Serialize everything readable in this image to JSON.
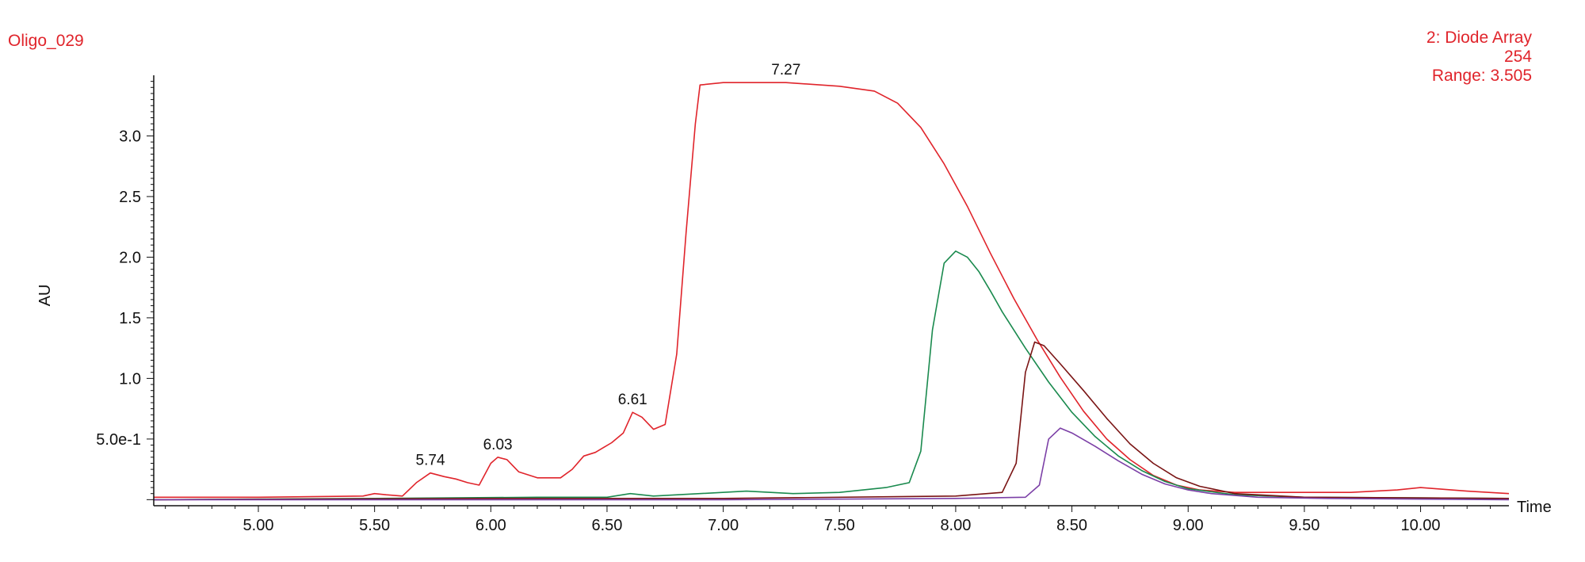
{
  "header": {
    "sample_name": "Oligo_029",
    "detector": "2: Diode Array",
    "wavelength": "254",
    "range_label": "Range: 3.505"
  },
  "chart_data": {
    "type": "line",
    "title": "",
    "xlabel": "Time",
    "ylabel": "AU",
    "xlim": [
      4.55,
      10.38
    ],
    "ylim": [
      -0.05,
      3.5
    ],
    "x_ticks": [
      5.0,
      5.5,
      6.0,
      6.5,
      7.0,
      7.5,
      8.0,
      8.5,
      9.0,
      9.5,
      10.0
    ],
    "x_tick_labels": [
      "5.00",
      "5.50",
      "6.00",
      "6.50",
      "7.00",
      "7.50",
      "8.00",
      "8.50",
      "9.00",
      "9.50",
      "10.00"
    ],
    "y_ticks": [
      0.5,
      1.0,
      1.5,
      2.0,
      2.5,
      3.0
    ],
    "y_tick_labels": [
      "5.0e-1",
      "1.0",
      "1.5",
      "2.0",
      "2.5",
      "3.0"
    ],
    "grid": false,
    "peak_labels": [
      {
        "x": 5.74,
        "y": 0.22,
        "label": "5.74"
      },
      {
        "x": 6.03,
        "y": 0.35,
        "label": "6.03"
      },
      {
        "x": 6.61,
        "y": 0.72,
        "label": "6.61"
      },
      {
        "x": 7.27,
        "y": 3.44,
        "label": "7.27"
      }
    ],
    "series": [
      {
        "color": "#e0242b",
        "x": [
          4.55,
          5.0,
          5.45,
          5.5,
          5.55,
          5.62,
          5.68,
          5.74,
          5.8,
          5.85,
          5.9,
          5.95,
          6.0,
          6.03,
          6.07,
          6.12,
          6.2,
          6.3,
          6.35,
          6.4,
          6.45,
          6.52,
          6.57,
          6.61,
          6.65,
          6.7,
          6.75,
          6.8,
          6.84,
          6.88,
          6.9,
          7.0,
          7.27,
          7.5,
          7.65,
          7.75,
          7.85,
          7.95,
          8.05,
          8.15,
          8.25,
          8.35,
          8.45,
          8.55,
          8.65,
          8.75,
          8.85,
          8.95,
          9.05,
          9.2,
          9.4,
          9.7,
          9.9,
          10.0,
          10.2,
          10.38
        ],
        "y": [
          0.02,
          0.02,
          0.03,
          0.05,
          0.04,
          0.03,
          0.14,
          0.22,
          0.19,
          0.17,
          0.14,
          0.12,
          0.3,
          0.35,
          0.33,
          0.23,
          0.18,
          0.18,
          0.25,
          0.36,
          0.39,
          0.47,
          0.55,
          0.72,
          0.68,
          0.58,
          0.62,
          1.2,
          2.2,
          3.1,
          3.42,
          3.44,
          3.44,
          3.41,
          3.37,
          3.27,
          3.07,
          2.77,
          2.42,
          2.03,
          1.66,
          1.32,
          1.01,
          0.73,
          0.5,
          0.33,
          0.2,
          0.12,
          0.08,
          0.06,
          0.06,
          0.06,
          0.08,
          0.1,
          0.07,
          0.05
        ]
      },
      {
        "color": "#1a8a4e",
        "x": [
          4.55,
          5.5,
          6.2,
          6.5,
          6.6,
          6.7,
          7.1,
          7.3,
          7.5,
          7.7,
          7.8,
          7.85,
          7.9,
          7.95,
          8.0,
          8.05,
          8.1,
          8.15,
          8.2,
          8.3,
          8.4,
          8.5,
          8.6,
          8.7,
          8.8,
          8.9,
          9.0,
          9.2,
          9.5,
          10.38
        ],
        "y": [
          0.0,
          0.01,
          0.02,
          0.02,
          0.05,
          0.03,
          0.07,
          0.05,
          0.06,
          0.1,
          0.14,
          0.4,
          1.4,
          1.95,
          2.05,
          2.0,
          1.88,
          1.72,
          1.55,
          1.25,
          0.97,
          0.72,
          0.52,
          0.36,
          0.24,
          0.15,
          0.09,
          0.04,
          0.02,
          0.01
        ]
      },
      {
        "color": "#7a1414",
        "x": [
          4.55,
          6.0,
          7.0,
          8.0,
          8.2,
          8.26,
          8.3,
          8.34,
          8.38,
          8.45,
          8.55,
          8.65,
          8.75,
          8.85,
          8.95,
          9.05,
          9.2,
          9.5,
          10.38
        ],
        "y": [
          0.0,
          0.01,
          0.01,
          0.03,
          0.06,
          0.3,
          1.05,
          1.3,
          1.27,
          1.12,
          0.9,
          0.67,
          0.46,
          0.3,
          0.18,
          0.11,
          0.05,
          0.02,
          0.01
        ]
      },
      {
        "color": "#7b3fa6",
        "x": [
          4.55,
          7.0,
          8.0,
          8.3,
          8.36,
          8.4,
          8.45,
          8.5,
          8.6,
          8.7,
          8.8,
          8.9,
          9.0,
          9.1,
          9.3,
          9.6,
          10.38
        ],
        "y": [
          0.0,
          0.0,
          0.01,
          0.02,
          0.12,
          0.5,
          0.59,
          0.55,
          0.44,
          0.32,
          0.21,
          0.13,
          0.08,
          0.05,
          0.02,
          0.01,
          0.0
        ]
      }
    ]
  }
}
